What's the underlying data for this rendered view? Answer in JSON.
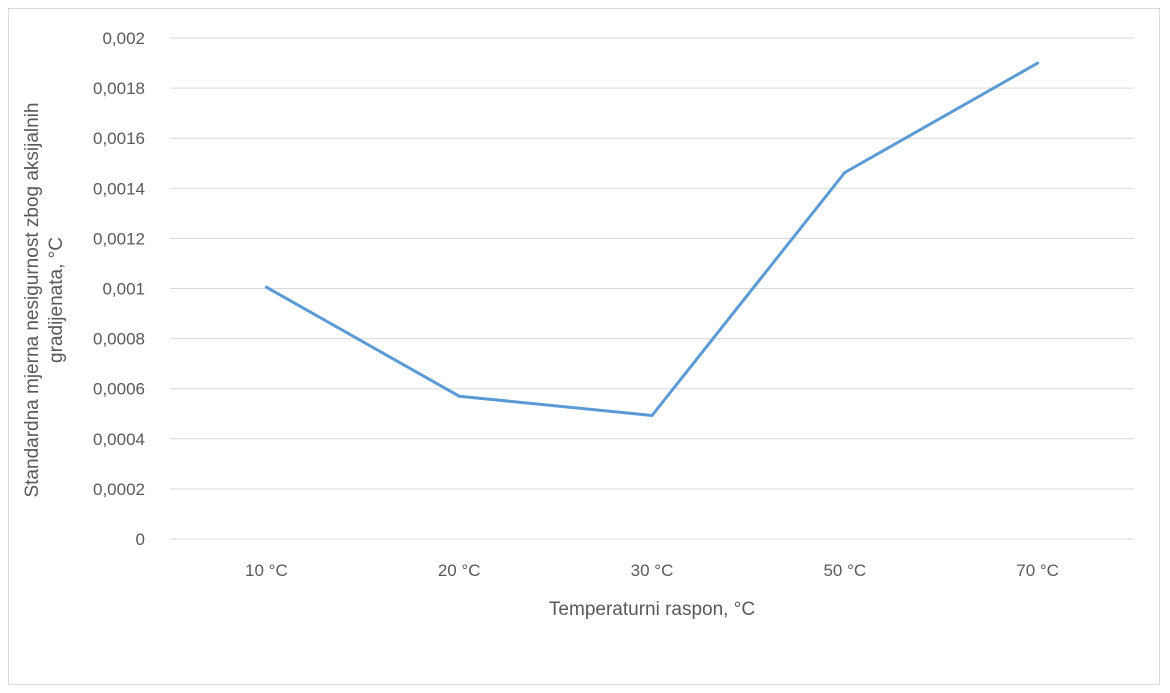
{
  "chart_data": {
    "type": "line",
    "title": "",
    "xlabel": "Temperaturni raspon, °C",
    "ylabel_lines": [
      "Standardna mjerna nesigurnost zbog aksijalnih",
      "gradijenata, °C"
    ],
    "categories": [
      "10 °C",
      "20 °C",
      "30 °C",
      "50 °C",
      "70 °C"
    ],
    "series": [
      {
        "values": [
          0.001005,
          0.00057,
          0.000493,
          0.001463,
          0.0019
        ]
      }
    ],
    "ylim": [
      0,
      0.002
    ],
    "yticks": [
      {
        "value": 0,
        "label": "0"
      },
      {
        "value": 0.0002,
        "label": "0,0002"
      },
      {
        "value": 0.0004,
        "label": "0,0004"
      },
      {
        "value": 0.0006,
        "label": "0,0006"
      },
      {
        "value": 0.0008,
        "label": "0,0008"
      },
      {
        "value": 0.001,
        "label": "0,001"
      },
      {
        "value": 0.0012,
        "label": "0,0012"
      },
      {
        "value": 0.0014,
        "label": "0,0014"
      },
      {
        "value": 0.0016,
        "label": "0,0016"
      },
      {
        "value": 0.0018,
        "label": "0,0018"
      },
      {
        "value": 0.002,
        "label": "0,002"
      }
    ],
    "grid": true,
    "legend": "none",
    "line_color": "#5b9bd5",
    "grid_color": "#d9d9d9"
  }
}
